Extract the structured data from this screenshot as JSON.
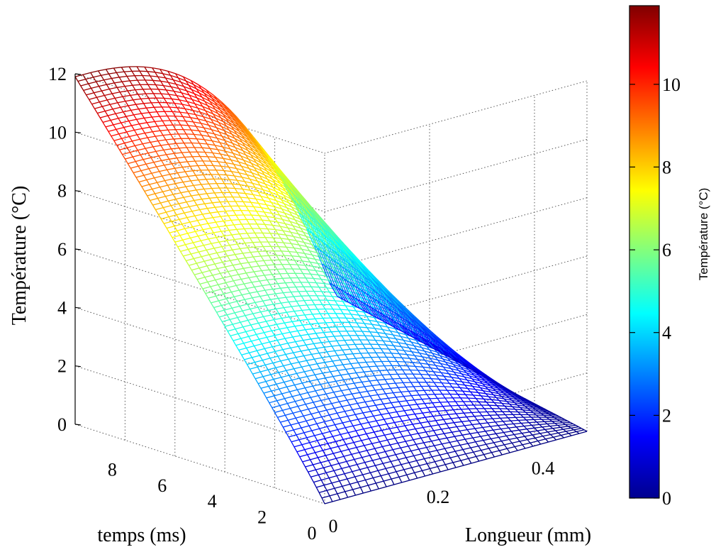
{
  "chart_data": {
    "type": "surface-mesh-3d",
    "title": "",
    "xlabel": "temps (ms)",
    "ylabel": "Longueur (mm)",
    "zlabel": "Température (°C)",
    "xlim": [
      0,
      10
    ],
    "ylim": [
      0,
      0.5
    ],
    "zlim": [
      0,
      12
    ],
    "xticks": [
      0,
      2,
      4,
      6,
      8
    ],
    "yticks": [
      0,
      0.2,
      0.4
    ],
    "zticks": [
      0,
      2,
      4,
      6,
      8,
      10,
      12
    ],
    "grid": true,
    "colormap": "jet",
    "colorbar": {
      "label": "Température (°C)",
      "range": [
        0,
        11.9
      ],
      "ticks": [
        0,
        2,
        4,
        6,
        8,
        10
      ]
    },
    "surface": {
      "description_of_values": "temperature at time x and position y",
      "x_samples": [
        0,
        1,
        2,
        3,
        4,
        5,
        6,
        7,
        8,
        9,
        10
      ],
      "y_samples": [
        0,
        0.05,
        0.1,
        0.15,
        0.2,
        0.25,
        0.3,
        0.35,
        0.4,
        0.45,
        0.5
      ],
      "z_values_at_y0": [
        0,
        1.2,
        2.4,
        3.6,
        4.8,
        6.0,
        7.2,
        8.4,
        9.6,
        10.8,
        11.9
      ],
      "z_values_at_t10": [
        11.9,
        11.7,
        11.2,
        10.4,
        9.4,
        8.2,
        6.9,
        5.5,
        4.0,
        2.5,
        1.9
      ]
    }
  }
}
